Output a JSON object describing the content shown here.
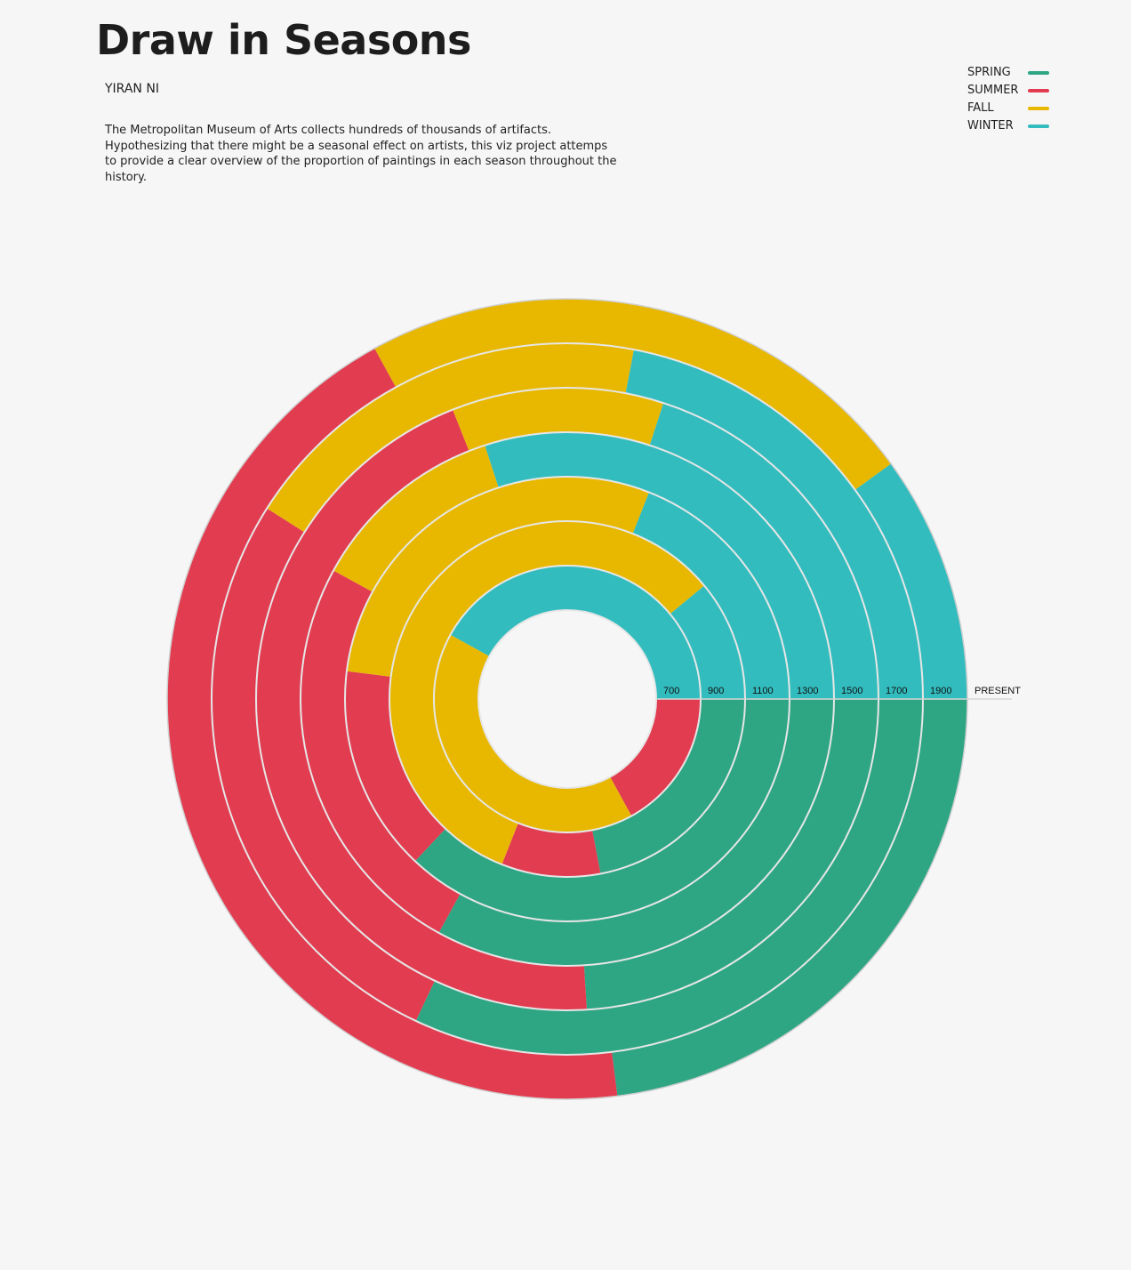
{
  "page": {
    "title": "Draw in Seasons",
    "author": "YIRAN NI",
    "description": "The Metropolitan Museum of Arts collects hundreds of thousands of artifacts. Hypothesizing that there might be a seasonal effect on artists, this viz project attemps to provide a clear overview of the proportion of paintings in each season throughout the history."
  },
  "legend": [
    {
      "label": "SPRING",
      "color": "#2ea683"
    },
    {
      "label": "SUMMER",
      "color": "#e23c51"
    },
    {
      "label": "FALL",
      "color": "#e8b800"
    },
    {
      "label": "WINTER",
      "color": "#33bcbe"
    }
  ],
  "chart_data": {
    "type": "radial-stacked-bar",
    "title": "",
    "ring_labels": [
      "700",
      "900",
      "1100",
      "1300",
      "1500",
      "1700",
      "1900",
      "PRESENT"
    ],
    "season_order": [
      "SPRING",
      "SUMMER",
      "FALL",
      "WINTER"
    ],
    "colors": {
      "SPRING": "#2ea683",
      "SUMMER": "#e23c51",
      "FALL": "#e8b800",
      "WINTER": "#33bcbe"
    },
    "rings": [
      {
        "period": "700-900",
        "SPRING": 0.0,
        "SUMMER": 0.17,
        "FALL": 0.41,
        "WINTER": 0.42
      },
      {
        "period": "900-1100",
        "SPRING": 0.22,
        "SUMMER": 0.09,
        "FALL": 0.58,
        "WINTER": 0.11
      },
      {
        "period": "1100-1300",
        "SPRING": 0.37,
        "SUMMER": 0.15,
        "FALL": 0.29,
        "WINTER": 0.19
      },
      {
        "period": "1300-1500",
        "SPRING": 0.33,
        "SUMMER": 0.25,
        "FALL": 0.12,
        "WINTER": 0.3
      },
      {
        "period": "1500-1700",
        "SPRING": 0.24,
        "SUMMER": 0.45,
        "FALL": 0.11,
        "WINTER": 0.2
      },
      {
        "period": "1700-1900",
        "SPRING": 0.32,
        "SUMMER": 0.27,
        "FALL": 0.19,
        "WINTER": 0.22
      },
      {
        "period": "1900-PRESENT",
        "SPRING": 0.23,
        "SUMMER": 0.44,
        "FALL": 0.23,
        "WINTER": 0.1
      }
    ]
  }
}
